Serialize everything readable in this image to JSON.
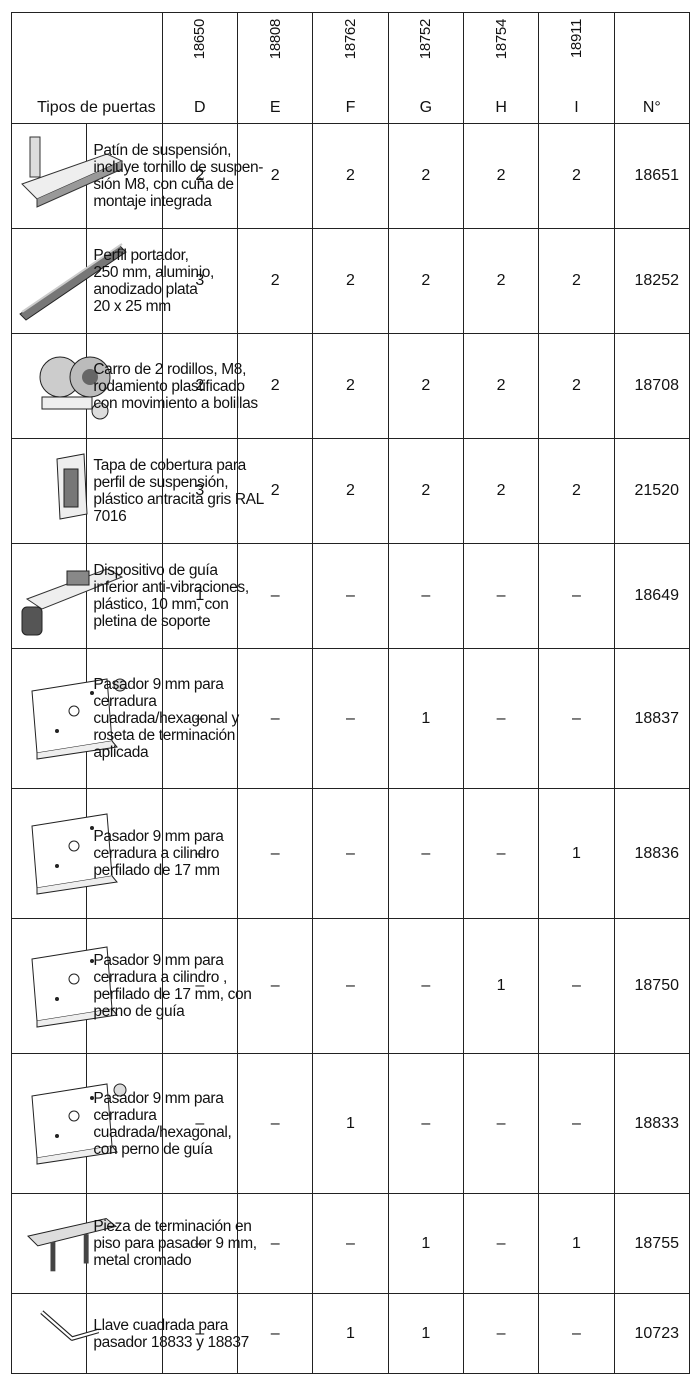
{
  "table": {
    "header": {
      "title": "Tipos de puertas",
      "codes": [
        "18650",
        "18808",
        "18762",
        "18752",
        "18754",
        "18911"
      ],
      "letters": [
        "D",
        "E",
        "F",
        "G",
        "H",
        "I"
      ],
      "number_label": "N°"
    },
    "rows": [
      {
        "description": [
          "Patín de suspensión,",
          "incluye tornillo de suspen-",
          "sión M8, con cuña de",
          "montaje integrada"
        ],
        "quantities": [
          2,
          2,
          2,
          2,
          2,
          2
        ],
        "number": "18651"
      },
      {
        "description": [
          "Perfil portador,",
          "250 mm, aluminio,",
          "anodizado plata",
          "20 x 25 mm"
        ],
        "quantities": [
          3,
          2,
          2,
          2,
          2,
          2
        ],
        "number": "18252"
      },
      {
        "description": [
          "Carro de 2 rodillos, M8,",
          "rodamiento plastificado",
          "con movimiento a bolillas"
        ],
        "quantities": [
          2,
          2,
          2,
          2,
          2,
          2
        ],
        "number": "18708"
      },
      {
        "description": [
          "Tapa de cobertura para",
          "perfil de suspensión,",
          "plástico antracita gris RAL",
          "7016"
        ],
        "quantities": [
          3,
          2,
          2,
          2,
          2,
          2
        ],
        "number": "21520"
      },
      {
        "description": [
          "Dispositivo de guía",
          "inferior anti-vibraciones,",
          "plástico, 10 mm, con",
          "pletina de soporte"
        ],
        "quantities": [
          1,
          "–",
          "–",
          "–",
          "–",
          "–"
        ],
        "number": "18649"
      },
      {
        "description": [
          "Pasador 9 mm para",
          "cerradura",
          "cuadrada/hexagonal y",
          "roseta de terminación",
          "aplicada"
        ],
        "quantities": [
          "–",
          "–",
          "–",
          1,
          "–",
          "–"
        ],
        "number": "18837"
      },
      {
        "description": [
          "Pasador 9 mm para",
          "cerradura a cilindro",
          "perfilado de 17 mm"
        ],
        "quantities": [
          "–",
          "–",
          "–",
          "–",
          "–",
          1
        ],
        "number": "18836"
      },
      {
        "description": [
          "Pasador 9 mm para",
          "cerradura a cilindro ,",
          "perfilado de 17 mm, con",
          "perno de guía"
        ],
        "quantities": [
          "–",
          "–",
          "–",
          "–",
          1,
          "–"
        ],
        "number": "18750"
      },
      {
        "description": [
          "Pasador 9 mm para",
          "cerradura",
          "cuadrada/hexagonal,",
          "con perno de guía"
        ],
        "quantities": [
          "–",
          "–",
          1,
          "–",
          "–",
          "–"
        ],
        "number": "18833"
      },
      {
        "description": [
          "Pieza de terminación en",
          "piso para pasador 9 mm,",
          "metal cromado"
        ],
        "quantities": [
          "–",
          "–",
          "–",
          1,
          "–",
          1
        ],
        "number": "18755"
      },
      {
        "description": [
          "Llave cuadrada para",
          "pasador 18833 y 18837"
        ],
        "quantities": [
          "–",
          "–",
          1,
          1,
          "–",
          "–"
        ],
        "number": "10723"
      }
    ]
  }
}
